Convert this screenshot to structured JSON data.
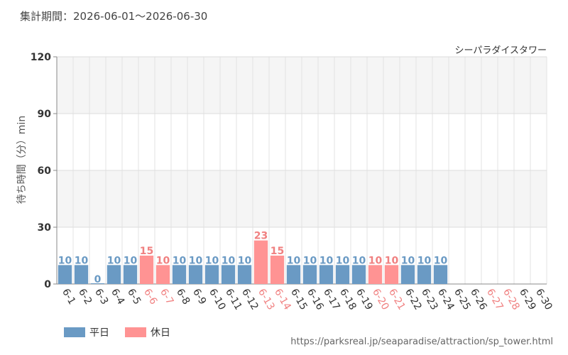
{
  "header": {
    "period": "集計期間：2026-06-01～2026-06-30"
  },
  "footer": {
    "url": "https://parksreal.jp/seaparadise/attraction/sp_tower.html"
  },
  "chart_data": {
    "type": "bar",
    "title": "シーパラダイスタワー",
    "ylabel": "待ち時間（分）min",
    "xlabel": "",
    "ylim": [
      0,
      120
    ],
    "yticks": [
      0,
      30,
      60,
      90,
      120
    ],
    "grid": true,
    "legend_position": "bottom-left",
    "colors": {
      "weekday": "#6a9ac4",
      "holiday": "#ff9393",
      "holiday_label": "#f08080",
      "weekday_label": "#6a9ac4"
    },
    "categories": [
      "6-1",
      "6-2",
      "6-3",
      "6-4",
      "6-5",
      "6-6",
      "6-7",
      "6-8",
      "6-9",
      "6-10",
      "6-11",
      "6-12",
      "6-13",
      "6-14",
      "6-15",
      "6-16",
      "6-17",
      "6-18",
      "6-19",
      "6-20",
      "6-21",
      "6-22",
      "6-23",
      "6-24",
      "6-25",
      "6-26",
      "6-27",
      "6-28",
      "6-29",
      "6-30"
    ],
    "values": [
      10,
      10,
      0,
      10,
      10,
      15,
      10,
      10,
      10,
      10,
      10,
      10,
      23,
      15,
      10,
      10,
      10,
      10,
      10,
      10,
      10,
      10,
      10,
      10,
      null,
      null,
      null,
      null,
      null,
      null
    ],
    "day_types": [
      "weekday",
      "weekday",
      "weekday",
      "weekday",
      "weekday",
      "holiday",
      "holiday",
      "weekday",
      "weekday",
      "weekday",
      "weekday",
      "weekday",
      "holiday",
      "holiday",
      "weekday",
      "weekday",
      "weekday",
      "weekday",
      "weekday",
      "holiday",
      "holiday",
      "weekday",
      "weekday",
      "weekday",
      "weekday",
      "weekday",
      "holiday",
      "holiday",
      "weekday",
      "weekday"
    ],
    "legend": [
      {
        "key": "weekday",
        "label": "平日"
      },
      {
        "key": "holiday",
        "label": "休日"
      }
    ]
  }
}
